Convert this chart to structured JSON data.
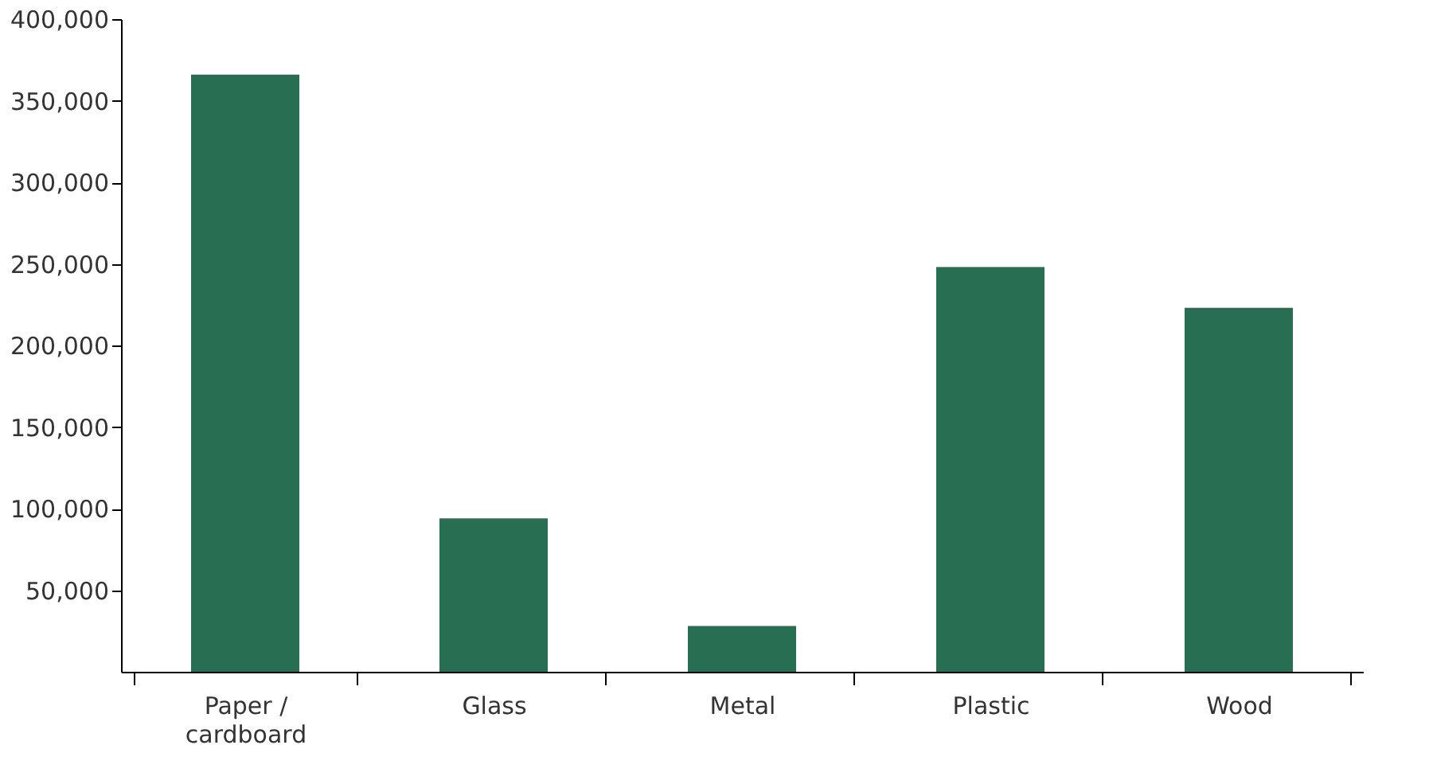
{
  "chart_data": {
    "type": "bar",
    "categories": [
      "Paper / cardboard",
      "Glass",
      "Metal",
      "Plastic",
      "Wood"
    ],
    "values": [
      366000,
      94000,
      28000,
      248000,
      223000
    ],
    "color": "#276e52",
    "ylim": [
      0,
      400000
    ],
    "yticks": [
      {
        "value": 50000,
        "label": "50,000"
      },
      {
        "value": 100000,
        "label": "100,000"
      },
      {
        "value": 150000,
        "label": "150,000"
      },
      {
        "value": 200000,
        "label": "200,000"
      },
      {
        "value": 250000,
        "label": "250,000"
      },
      {
        "value": 300000,
        "label": "300,000"
      },
      {
        "value": 350000,
        "label": "350,000"
      },
      {
        "value": 400000,
        "label": "400,000"
      }
    ],
    "grid": false
  }
}
